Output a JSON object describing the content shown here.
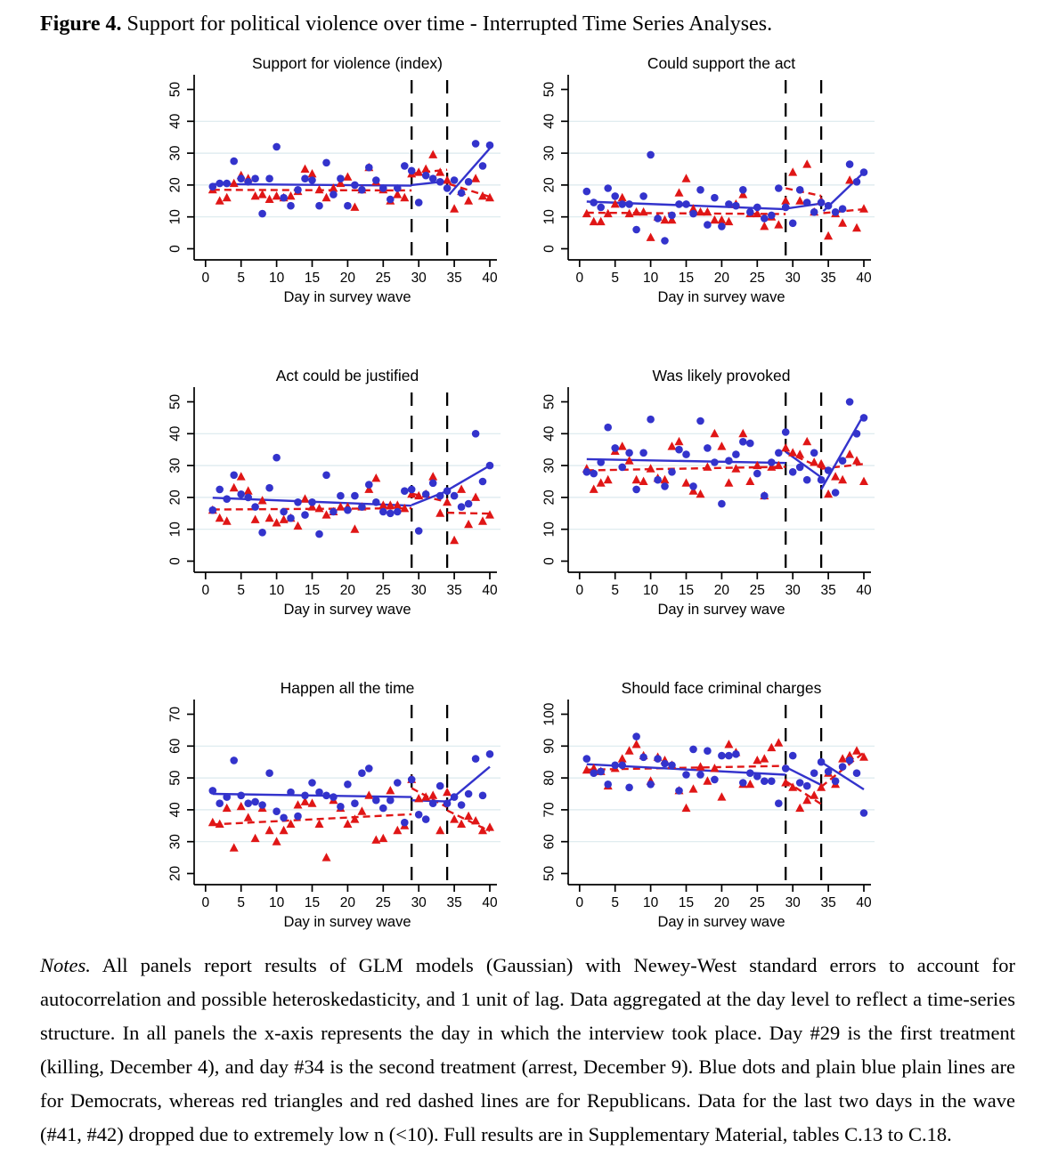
{
  "caption": {
    "label": "Figure 4.",
    "text": " Support for political violence over time - Interrupted Time Series Analyses."
  },
  "notes": {
    "label": "Notes.",
    "text": " All panels report results of GLM models (Gaussian) with Newey-West standard errors to account for autocorrelation and possible heteroskedasticity, and 1 unit of lag. Data aggregated at the day level to reflect a time-series structure. In all panels the x-axis represents the day in which the interview took place. Day #29 is the first treatment (killing, December 4), and day #34 is the second treatment (arrest, December 9). Blue dots and plain blue plain lines are for Democrats, whereas red triangles and red dashed lines are for Republicans. Data for the last two days in the wave (#41, #42) dropped due to extremely low n (<10). Full results are in Supplementary Material, tables C.13 to C.18."
  },
  "colors": {
    "democrat_blue": "#3333cc",
    "republican_red": "#e01616",
    "gridline": "#dbe9ee",
    "treatment_line": "#000000"
  },
  "chart_data": {
    "type": "scatter",
    "layout": "2x3 grid, legend none, light horizontal gridlines at interior y ticks",
    "x_label": "Day in survey wave",
    "x_ticks": [
      0,
      5,
      10,
      15,
      20,
      25,
      30,
      35,
      40
    ],
    "x_range_displayed": [
      -1.6,
      41.5
    ],
    "x_days": [
      1,
      2,
      3,
      4,
      5,
      6,
      7,
      8,
      9,
      10,
      11,
      12,
      13,
      14,
      15,
      16,
      17,
      18,
      19,
      20,
      21,
      22,
      23,
      24,
      25,
      26,
      27,
      28,
      29,
      30,
      31,
      32,
      33,
      34,
      35,
      36,
      37,
      38,
      39,
      40
    ],
    "treatment_days": [
      29,
      34
    ],
    "series_legend": [
      {
        "name": "Democrats",
        "marker": "circle",
        "line": "solid",
        "color": "#3333cc"
      },
      {
        "name": "Republicans",
        "marker": "triangle",
        "line": "dashed",
        "color": "#e01616"
      }
    ],
    "panels": [
      {
        "title": "Support for violence (index)",
        "y_ticks": [
          0,
          10,
          20,
          30,
          40,
          50
        ],
        "y_range_displayed": [
          -3.5,
          53.5
        ],
        "democrats": {
          "y": [
            19.5,
            20.5,
            20.5,
            27.5,
            22,
            21,
            22,
            11,
            22,
            32,
            16,
            13.5,
            18.5,
            22,
            21.5,
            13.5,
            27,
            17,
            22,
            13.5,
            20,
            18.5,
            25.5,
            21.5,
            19,
            15.5,
            19,
            26,
            24.5,
            14.5,
            23,
            22,
            21,
            19,
            21.5,
            17.5,
            21,
            33,
            26,
            32.5
          ],
          "trend_segments": [
            [
              [
                1,
                20.3
              ],
              [
                29,
                19.8
              ]
            ],
            [
              [
                29,
                20.0
              ],
              [
                34,
                21.2
              ]
            ],
            [
              [
                34.3,
                17.0
              ],
              [
                40,
                31.5
              ]
            ]
          ]
        },
        "republicans": {
          "y": [
            18.5,
            15,
            16,
            20.5,
            23,
            22,
            16.5,
            17,
            15.5,
            16.5,
            16,
            16.5,
            18,
            25,
            23.5,
            18.5,
            16,
            19,
            20.5,
            22.5,
            13,
            18.5,
            25.5,
            21,
            18.5,
            15,
            17,
            16,
            23.5,
            24,
            25,
            29.5,
            24,
            21.5,
            12.5,
            18,
            15,
            22,
            16.5,
            16
          ],
          "trend_segments": [
            [
              [
                1,
                18.5
              ],
              [
                29,
                18.3
              ]
            ],
            [
              [
                29,
                23.6
              ],
              [
                34,
                24.8
              ]
            ],
            [
              [
                34.3,
                20.3
              ],
              [
                40,
                16.3
              ]
            ]
          ]
        }
      },
      {
        "title": "Could support the act",
        "y_ticks": [
          0,
          10,
          20,
          30,
          40,
          50
        ],
        "y_range_displayed": [
          -3.5,
          53.5
        ],
        "democrats": {
          "y": [
            18,
            14.5,
            13,
            19,
            16.5,
            14,
            14,
            6,
            16.5,
            29.5,
            9.5,
            2.5,
            10.5,
            14,
            14,
            11,
            18.5,
            7.5,
            16,
            7,
            14,
            13.5,
            18.5,
            11.5,
            13,
            9.5,
            10.5,
            19,
            13,
            8,
            18.5,
            14.5,
            11.5,
            14.5,
            13.5,
            11.5,
            12.5,
            26.5,
            21,
            24
          ],
          "trend_segments": [
            [
              [
                1,
                14.8
              ],
              [
                29,
                12.4
              ]
            ],
            [
              [
                29,
                12.6
              ],
              [
                34,
                14.2
              ]
            ],
            [
              [
                34.3,
                11.8
              ],
              [
                40,
                24.0
              ]
            ]
          ]
        },
        "republicans": {
          "y": [
            11,
            8.5,
            8.5,
            11,
            14,
            16,
            11,
            11.5,
            11.5,
            3.5,
            10,
            9,
            9,
            17.5,
            22,
            12.5,
            11.5,
            11.5,
            9,
            9,
            8.5,
            14,
            17,
            11,
            11,
            7,
            10,
            7.5,
            15,
            24,
            15,
            26.5,
            11.5,
            15,
            4,
            11,
            8,
            21.5,
            6.5,
            12.5
          ],
          "trend_segments": [
            [
              [
                1,
                11.3
              ],
              [
                29,
                10.9
              ]
            ],
            [
              [
                29,
                19.0
              ],
              [
                34,
                16.6
              ]
            ],
            [
              [
                34.3,
                11.2
              ],
              [
                40,
                12.4
              ]
            ]
          ]
        }
      },
      {
        "title": "Act could be justified",
        "y_ticks": [
          0,
          10,
          20,
          30,
          40,
          50
        ],
        "y_range_displayed": [
          -3.5,
          53.5
        ],
        "democrats": {
          "y": [
            16,
            22.5,
            19.5,
            27,
            21,
            20,
            17,
            9,
            23,
            32.5,
            15.5,
            13.5,
            18.5,
            14.5,
            18.5,
            8.5,
            27,
            15.5,
            20.5,
            16,
            20.5,
            17,
            24,
            18.5,
            15.5,
            15,
            15.5,
            22,
            22.5,
            9.5,
            21,
            24.5,
            20.5,
            22,
            20.5,
            17,
            18,
            40,
            25,
            30
          ],
          "trend_segments": [
            [
              [
                1,
                19.9
              ],
              [
                29,
                17.4
              ]
            ],
            [
              [
                29,
                17.6
              ],
              [
                34,
                22.0
              ]
            ],
            [
              [
                34,
                22.2
              ],
              [
                40,
                30.0
              ]
            ]
          ]
        },
        "republicans": {
          "y": [
            16,
            13.5,
            12.5,
            23,
            26.5,
            22,
            13,
            19,
            13.5,
            12,
            13,
            13.5,
            11,
            19.5,
            17,
            16.5,
            14.5,
            15.5,
            17,
            17,
            10,
            17,
            22.5,
            26,
            17.5,
            17.5,
            17.5,
            16.5,
            21,
            20.5,
            21,
            26.5,
            15,
            18.5,
            6.5,
            22.5,
            11.5,
            20,
            12.5,
            14.5
          ],
          "trend_segments": [
            [
              [
                1,
                16.2
              ],
              [
                29,
                16.6
              ]
            ],
            [
              [
                29,
                21.2
              ],
              [
                34,
                18.6
              ]
            ],
            [
              [
                34,
                15.2
              ],
              [
                40,
                14.9
              ]
            ]
          ]
        }
      },
      {
        "title": "Was likely provoked",
        "y_ticks": [
          0,
          10,
          20,
          30,
          40,
          50
        ],
        "y_range_displayed": [
          -3.5,
          53.5
        ],
        "democrats": {
          "y": [
            28,
            27.5,
            31,
            42,
            35.5,
            29.5,
            34,
            22.5,
            34,
            44.5,
            25.5,
            23.5,
            28,
            35,
            33.5,
            23.5,
            44,
            35.5,
            31,
            18,
            31.5,
            33.5,
            37.5,
            37,
            27.5,
            20.5,
            31,
            34,
            40.5,
            28,
            29.5,
            25.5,
            34,
            25.5,
            28.5,
            21.5,
            31.5,
            50,
            40,
            45
          ],
          "trend_segments": [
            [
              [
                1,
                32.0
              ],
              [
                29,
                30.8
              ]
            ],
            [
              [
                29,
                34.3
              ],
              [
                34,
                26.3
              ]
            ],
            [
              [
                34,
                22.5
              ],
              [
                40,
                46.0
              ]
            ]
          ]
        },
        "republicans": {
          "y": [
            29,
            22.5,
            24.5,
            25.5,
            34.5,
            36,
            31.5,
            25.5,
            25,
            29,
            26,
            25.5,
            36,
            37.5,
            24.5,
            22,
            21,
            29.5,
            40,
            36,
            24.5,
            29,
            40,
            25,
            30,
            20.5,
            29.5,
            30,
            35.5,
            34,
            33.5,
            37.5,
            31,
            30.5,
            21,
            26.5,
            25.5,
            33.5,
            31.5,
            25
          ],
          "trend_segments": [
            [
              [
                1,
                28.5
              ],
              [
                29,
                29.6
              ]
            ],
            [
              [
                29,
                34.3
              ],
              [
                34,
                29.3
              ]
            ],
            [
              [
                34,
                29.0
              ],
              [
                40,
                30.5
              ]
            ]
          ]
        }
      },
      {
        "title": "Happen all the time",
        "y_ticks": [
          20,
          30,
          40,
          50,
          60,
          70
        ],
        "y_range_displayed": [
          16.5,
          73.5
        ],
        "democrats": {
          "y": [
            46,
            42,
            44,
            55.5,
            44.5,
            42,
            42.5,
            41.5,
            51.5,
            39.5,
            37.5,
            45.5,
            38,
            44.5,
            48.5,
            45.5,
            44.5,
            44,
            41,
            48,
            42,
            51.5,
            53,
            43,
            40.5,
            43,
            48.5,
            36,
            49.5,
            38.5,
            37,
            42,
            47.5,
            42,
            44,
            41.5,
            45,
            56,
            44.5,
            57.5
          ],
          "trend_segments": [
            [
              [
                1,
                45.0
              ],
              [
                29,
                44.0
              ]
            ],
            [
              [
                29,
                43.0
              ],
              [
                34,
                42.6
              ]
            ],
            [
              [
                34,
                42.3
              ],
              [
                40,
                53.5
              ]
            ]
          ]
        },
        "republicans": {
          "y": [
            36,
            35.5,
            40.5,
            28,
            41,
            37.5,
            31,
            40.5,
            33.5,
            30,
            33.5,
            35.5,
            41.5,
            42.5,
            42,
            35.5,
            25,
            43,
            40.5,
            35.5,
            37,
            39.5,
            44.5,
            30.5,
            31,
            46,
            33.5,
            35,
            49.5,
            43.5,
            44,
            44.5,
            33.5,
            45.5,
            37,
            35.5,
            38,
            36.5,
            33.5,
            34.5
          ],
          "trend_segments": [
            [
              [
                1,
                35.4
              ],
              [
                29,
                38.6
              ]
            ],
            [
              [
                29,
                46.8
              ],
              [
                34,
                40.8
              ]
            ],
            [
              [
                34,
                39.8
              ],
              [
                40,
                33.3
              ]
            ]
          ]
        }
      },
      {
        "title": "Should face criminal charges",
        "y_ticks": [
          50,
          60,
          70,
          80,
          90,
          100
        ],
        "y_range_displayed": [
          46.5,
          103.5
        ],
        "democrats": {
          "y": [
            86,
            81.5,
            82,
            78,
            84,
            84,
            77,
            93,
            86.5,
            78,
            86,
            84.5,
            84,
            76,
            81,
            89,
            81,
            88.5,
            79.5,
            87,
            87,
            87.5,
            78.5,
            81.5,
            80.5,
            79,
            79,
            72,
            83,
            87,
            78.5,
            77.5,
            81.5,
            85,
            82,
            79,
            83.5,
            85.5,
            81.5,
            69
          ],
          "trend_segments": [
            [
              [
                1,
                84.3
              ],
              [
                29,
                81.0
              ]
            ],
            [
              [
                29,
                83.4
              ],
              [
                34,
                77.8
              ]
            ],
            [
              [
                34,
                85.0
              ],
              [
                40,
                76.4
              ]
            ]
          ]
        },
        "republicans": {
          "y": [
            82.5,
            83,
            82,
            77.5,
            83,
            86,
            88.5,
            90.5,
            87,
            79,
            86.5,
            85.5,
            84,
            76,
            70.5,
            76.5,
            83.5,
            79,
            83,
            74,
            90.5,
            88,
            78,
            78,
            85.5,
            86,
            89.5,
            91,
            78.5,
            77,
            70.5,
            73,
            74.5,
            77,
            81.5,
            78,
            86,
            87,
            88.5,
            86.5
          ],
          "trend_segments": [
            [
              [
                1,
                82.6
              ],
              [
                29,
                83.8
              ]
            ],
            [
              [
                29,
                79.0
              ],
              [
                34,
                71.8
              ]
            ],
            [
              [
                34,
                77.2
              ],
              [
                40,
                88.0
              ]
            ]
          ]
        }
      }
    ]
  }
}
